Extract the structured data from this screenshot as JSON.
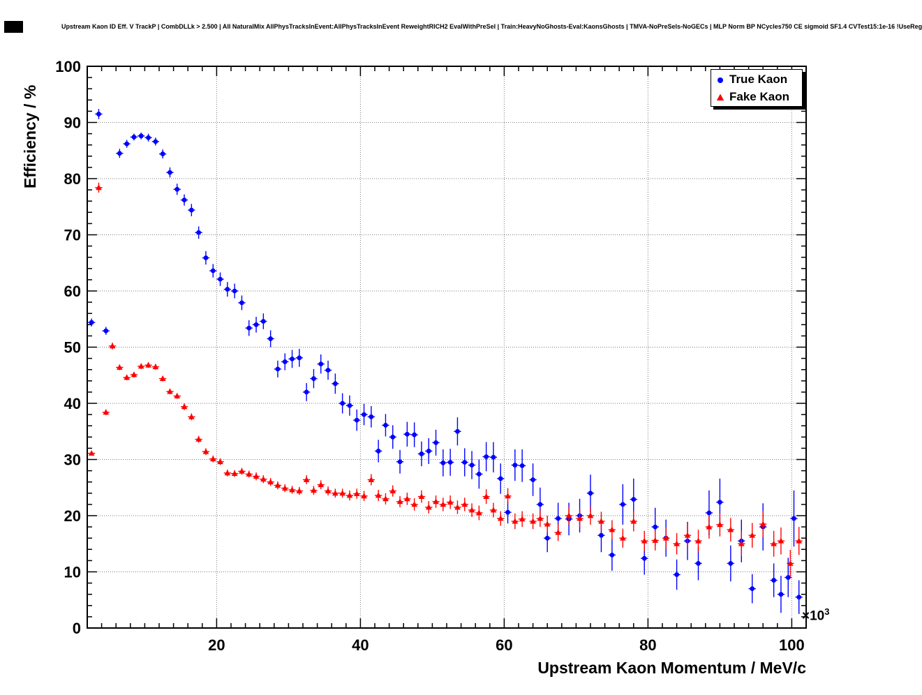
{
  "page": {
    "title": "Upstream Kaon ID Eff. V TrackP | CombDLLk > 2.500 | All NaturalMix AllPhysTracksInEvent:AllPhysTracksInEvent ReweightRICH2 EvalWithPreSel | Train:HeavyNoGhosts-Eval:KaonsGhosts | TMVA-NoPreSels-NoGECs | MLP Norm BP NCycles750 CE sigmoid SF1.4 CVTest15:1e-16 !UseReg"
  },
  "chart_data": {
    "type": "scatter",
    "error_bars": true,
    "title": "Upstream Kaon ID Eff. V TrackP | CombDLLk > 2.500 | All NaturalMix AllPhysTracksInEvent:AllPhysTracksInEvent ReweightRICH2 EvalWithPreSel | Train:HeavyNoGhosts-Eval:KaonsGhosts | TMVA-NoPreSels-NoGECs | MLP Norm BP NCycles750 CE sigmoid SF1.4 CVTest15:1e-16 !UseReg",
    "xlabel": "Upstream Kaon Momentum / MeV/c",
    "ylabel": "Efficiency / %",
    "x_multiplier_base": "×10",
    "x_multiplier_exp": "3",
    "xlim": [
      2000,
      102000
    ],
    "ylim": [
      0,
      100
    ],
    "x_ticks": [
      20000,
      40000,
      60000,
      80000,
      100000
    ],
    "x_tick_labels": [
      "20",
      "40",
      "60",
      "80",
      "100"
    ],
    "y_ticks": [
      0,
      10,
      20,
      30,
      40,
      50,
      60,
      70,
      80,
      90,
      100
    ],
    "y_tick_labels": [
      "0",
      "10",
      "20",
      "30",
      "40",
      "50",
      "60",
      "70",
      "80",
      "90",
      "100"
    ],
    "grid": true,
    "grid_style": "dotted",
    "background": "#ffffff",
    "legend": {
      "position": "top-right",
      "entries": [
        {
          "label": "True Kaon",
          "color": "#0000ff",
          "marker": "circle"
        },
        {
          "label": "Fake Kaon",
          "color": "#ff0000",
          "marker": "triangle"
        }
      ]
    },
    "series": [
      {
        "name": "True Kaon",
        "color": "#0000ff",
        "marker": "circle",
        "xerr": 500,
        "points": [
          [
            2600,
            54.4,
            0.7
          ],
          [
            3600,
            91.5,
            0.9
          ],
          [
            4600,
            52.9,
            0.7
          ],
          [
            6500,
            84.5,
            0.8
          ],
          [
            7500,
            86.2,
            0.7
          ],
          [
            8500,
            87.4,
            0.6
          ],
          [
            9500,
            87.6,
            0.6
          ],
          [
            10500,
            87.3,
            0.7
          ],
          [
            11500,
            86.6,
            0.7
          ],
          [
            12500,
            84.4,
            0.8
          ],
          [
            13500,
            81.1,
            0.9
          ],
          [
            14500,
            78.1,
            1.0
          ],
          [
            15500,
            76.2,
            1.0
          ],
          [
            16500,
            74.4,
            1.1
          ],
          [
            17500,
            70.4,
            1.1
          ],
          [
            18500,
            65.9,
            1.2
          ],
          [
            19500,
            63.6,
            1.2
          ],
          [
            20500,
            62.1,
            1.2
          ],
          [
            21500,
            60.3,
            1.3
          ],
          [
            22500,
            60.0,
            1.3
          ],
          [
            23500,
            57.9,
            1.3
          ],
          [
            24500,
            53.4,
            1.4
          ],
          [
            25500,
            54.0,
            1.4
          ],
          [
            26500,
            54.6,
            1.4
          ],
          [
            27500,
            51.5,
            1.5
          ],
          [
            28500,
            46.1,
            1.5
          ],
          [
            29500,
            47.4,
            1.5
          ],
          [
            30500,
            47.9,
            1.6
          ],
          [
            31500,
            48.1,
            1.6
          ],
          [
            32500,
            42.0,
            1.6
          ],
          [
            33500,
            44.4,
            1.7
          ],
          [
            34500,
            47.0,
            1.7
          ],
          [
            35500,
            45.9,
            1.7
          ],
          [
            36500,
            43.5,
            1.8
          ],
          [
            37500,
            40.0,
            1.8
          ],
          [
            38500,
            39.6,
            1.8
          ],
          [
            39500,
            37.0,
            1.9
          ],
          [
            40500,
            38.0,
            1.9
          ],
          [
            41500,
            37.6,
            1.9
          ],
          [
            42500,
            31.5,
            2.0
          ],
          [
            43500,
            36.1,
            2.0
          ],
          [
            44500,
            34.0,
            2.1
          ],
          [
            45500,
            29.6,
            2.1
          ],
          [
            46500,
            34.5,
            2.2
          ],
          [
            47500,
            34.4,
            2.2
          ],
          [
            48500,
            31.0,
            2.2
          ],
          [
            49500,
            31.5,
            2.3
          ],
          [
            50500,
            33.0,
            2.3
          ],
          [
            51500,
            29.4,
            2.4
          ],
          [
            52500,
            29.5,
            2.4
          ],
          [
            53500,
            35.0,
            2.5
          ],
          [
            54500,
            29.5,
            2.5
          ],
          [
            55500,
            29.0,
            2.5
          ],
          [
            56500,
            27.4,
            2.6
          ],
          [
            57500,
            30.5,
            2.6
          ],
          [
            58500,
            30.4,
            2.7
          ],
          [
            59500,
            26.6,
            2.7
          ],
          [
            60500,
            20.6,
            2.0
          ],
          [
            61500,
            29.0,
            2.8
          ],
          [
            62500,
            28.9,
            2.9
          ],
          [
            64000,
            26.4,
            2.9
          ],
          [
            65000,
            22.0,
            3.0
          ],
          [
            66000,
            16.0,
            2.5
          ],
          [
            67500,
            19.5,
            2.8
          ],
          [
            69000,
            19.4,
            2.9
          ],
          [
            70500,
            20.0,
            3.0
          ],
          [
            72000,
            24.0,
            3.3
          ],
          [
            73500,
            16.5,
            3.0
          ],
          [
            75000,
            13.0,
            2.8
          ],
          [
            76500,
            22.0,
            3.6
          ],
          [
            78000,
            22.9,
            3.7
          ],
          [
            79500,
            12.4,
            2.9
          ],
          [
            81000,
            18.0,
            3.4
          ],
          [
            82500,
            16.0,
            3.3
          ],
          [
            84000,
            9.5,
            2.7
          ],
          [
            85500,
            15.5,
            3.4
          ],
          [
            87000,
            11.5,
            3.0
          ],
          [
            88500,
            20.5,
            4.0
          ],
          [
            90000,
            22.4,
            4.2
          ],
          [
            91500,
            11.5,
            3.2
          ],
          [
            93000,
            15.5,
            3.8
          ],
          [
            94500,
            7.0,
            2.6
          ],
          [
            96000,
            18.0,
            4.2
          ],
          [
            97500,
            8.5,
            3.0
          ],
          [
            98500,
            6.0,
            3.3
          ],
          [
            99500,
            9.0,
            3.5
          ],
          [
            100300,
            19.5,
            5.0
          ],
          [
            101000,
            5.5,
            3.0
          ]
        ]
      },
      {
        "name": "Fake Kaon",
        "color": "#ff0000",
        "marker": "triangle",
        "xerr": 500,
        "points": [
          [
            2600,
            31.1,
            0.4
          ],
          [
            3600,
            78.4,
            0.9
          ],
          [
            4600,
            38.4,
            0.5
          ],
          [
            5500,
            50.2,
            0.6
          ],
          [
            6500,
            46.4,
            0.5
          ],
          [
            7500,
            44.6,
            0.5
          ],
          [
            8500,
            45.1,
            0.5
          ],
          [
            9500,
            46.6,
            0.5
          ],
          [
            10500,
            46.8,
            0.5
          ],
          [
            11500,
            46.5,
            0.5
          ],
          [
            12500,
            44.4,
            0.5
          ],
          [
            13500,
            42.1,
            0.5
          ],
          [
            14500,
            41.3,
            0.5
          ],
          [
            15500,
            39.4,
            0.6
          ],
          [
            16500,
            37.6,
            0.6
          ],
          [
            17500,
            33.6,
            0.6
          ],
          [
            18500,
            31.4,
            0.6
          ],
          [
            19500,
            30.1,
            0.6
          ],
          [
            20500,
            29.6,
            0.6
          ],
          [
            21500,
            27.6,
            0.6
          ],
          [
            22500,
            27.5,
            0.6
          ],
          [
            23500,
            27.9,
            0.6
          ],
          [
            24500,
            27.4,
            0.6
          ],
          [
            25500,
            27.0,
            0.7
          ],
          [
            26500,
            26.5,
            0.7
          ],
          [
            27500,
            26.0,
            0.7
          ],
          [
            28500,
            25.4,
            0.7
          ],
          [
            29500,
            24.9,
            0.7
          ],
          [
            30500,
            24.6,
            0.7
          ],
          [
            31500,
            24.4,
            0.7
          ],
          [
            32500,
            26.4,
            0.8
          ],
          [
            33500,
            24.5,
            0.8
          ],
          [
            34500,
            25.5,
            0.8
          ],
          [
            35500,
            24.4,
            0.8
          ],
          [
            36500,
            24.0,
            0.8
          ],
          [
            37500,
            24.0,
            0.8
          ],
          [
            38500,
            23.6,
            0.9
          ],
          [
            39500,
            23.9,
            0.9
          ],
          [
            40500,
            23.5,
            0.9
          ],
          [
            41500,
            26.4,
            1.0
          ],
          [
            42500,
            23.6,
            1.0
          ],
          [
            43500,
            23.0,
            1.0
          ],
          [
            44500,
            24.4,
            1.0
          ],
          [
            45500,
            22.5,
            1.0
          ],
          [
            46500,
            23.0,
            1.1
          ],
          [
            47500,
            22.0,
            1.1
          ],
          [
            48500,
            23.4,
            1.1
          ],
          [
            49500,
            21.5,
            1.1
          ],
          [
            50500,
            22.5,
            1.1
          ],
          [
            51500,
            22.0,
            1.2
          ],
          [
            52500,
            22.4,
            1.2
          ],
          [
            53500,
            21.5,
            1.2
          ],
          [
            54500,
            22.0,
            1.2
          ],
          [
            55500,
            21.0,
            1.2
          ],
          [
            56500,
            20.5,
            1.3
          ],
          [
            57500,
            23.4,
            1.3
          ],
          [
            58500,
            21.0,
            1.3
          ],
          [
            59500,
            19.5,
            1.3
          ],
          [
            60500,
            23.5,
            1.4
          ],
          [
            61500,
            19.0,
            1.4
          ],
          [
            62500,
            19.4,
            1.4
          ],
          [
            64000,
            19.0,
            1.4
          ],
          [
            65000,
            19.5,
            1.5
          ],
          [
            66000,
            18.5,
            1.5
          ],
          [
            67500,
            17.0,
            1.5
          ],
          [
            69000,
            20.0,
            1.6
          ],
          [
            70500,
            19.5,
            1.6
          ],
          [
            72000,
            20.0,
            1.6
          ],
          [
            73500,
            19.0,
            1.7
          ],
          [
            75000,
            17.5,
            1.7
          ],
          [
            76500,
            16.0,
            1.7
          ],
          [
            78000,
            19.0,
            1.8
          ],
          [
            79500,
            15.5,
            1.8
          ],
          [
            81000,
            15.6,
            1.8
          ],
          [
            82500,
            16.0,
            1.9
          ],
          [
            84000,
            15.0,
            1.9
          ],
          [
            85500,
            16.5,
            2.0
          ],
          [
            87000,
            15.5,
            2.0
          ],
          [
            88500,
            18.0,
            2.1
          ],
          [
            90000,
            18.4,
            2.1
          ],
          [
            91500,
            17.5,
            2.1
          ],
          [
            93000,
            15.0,
            2.2
          ],
          [
            94500,
            16.5,
            2.2
          ],
          [
            96000,
            18.5,
            2.3
          ],
          [
            97500,
            15.0,
            2.3
          ],
          [
            98500,
            15.5,
            2.4
          ],
          [
            99800,
            11.5,
            2.4
          ],
          [
            101000,
            15.5,
            2.5
          ]
        ]
      }
    ]
  }
}
